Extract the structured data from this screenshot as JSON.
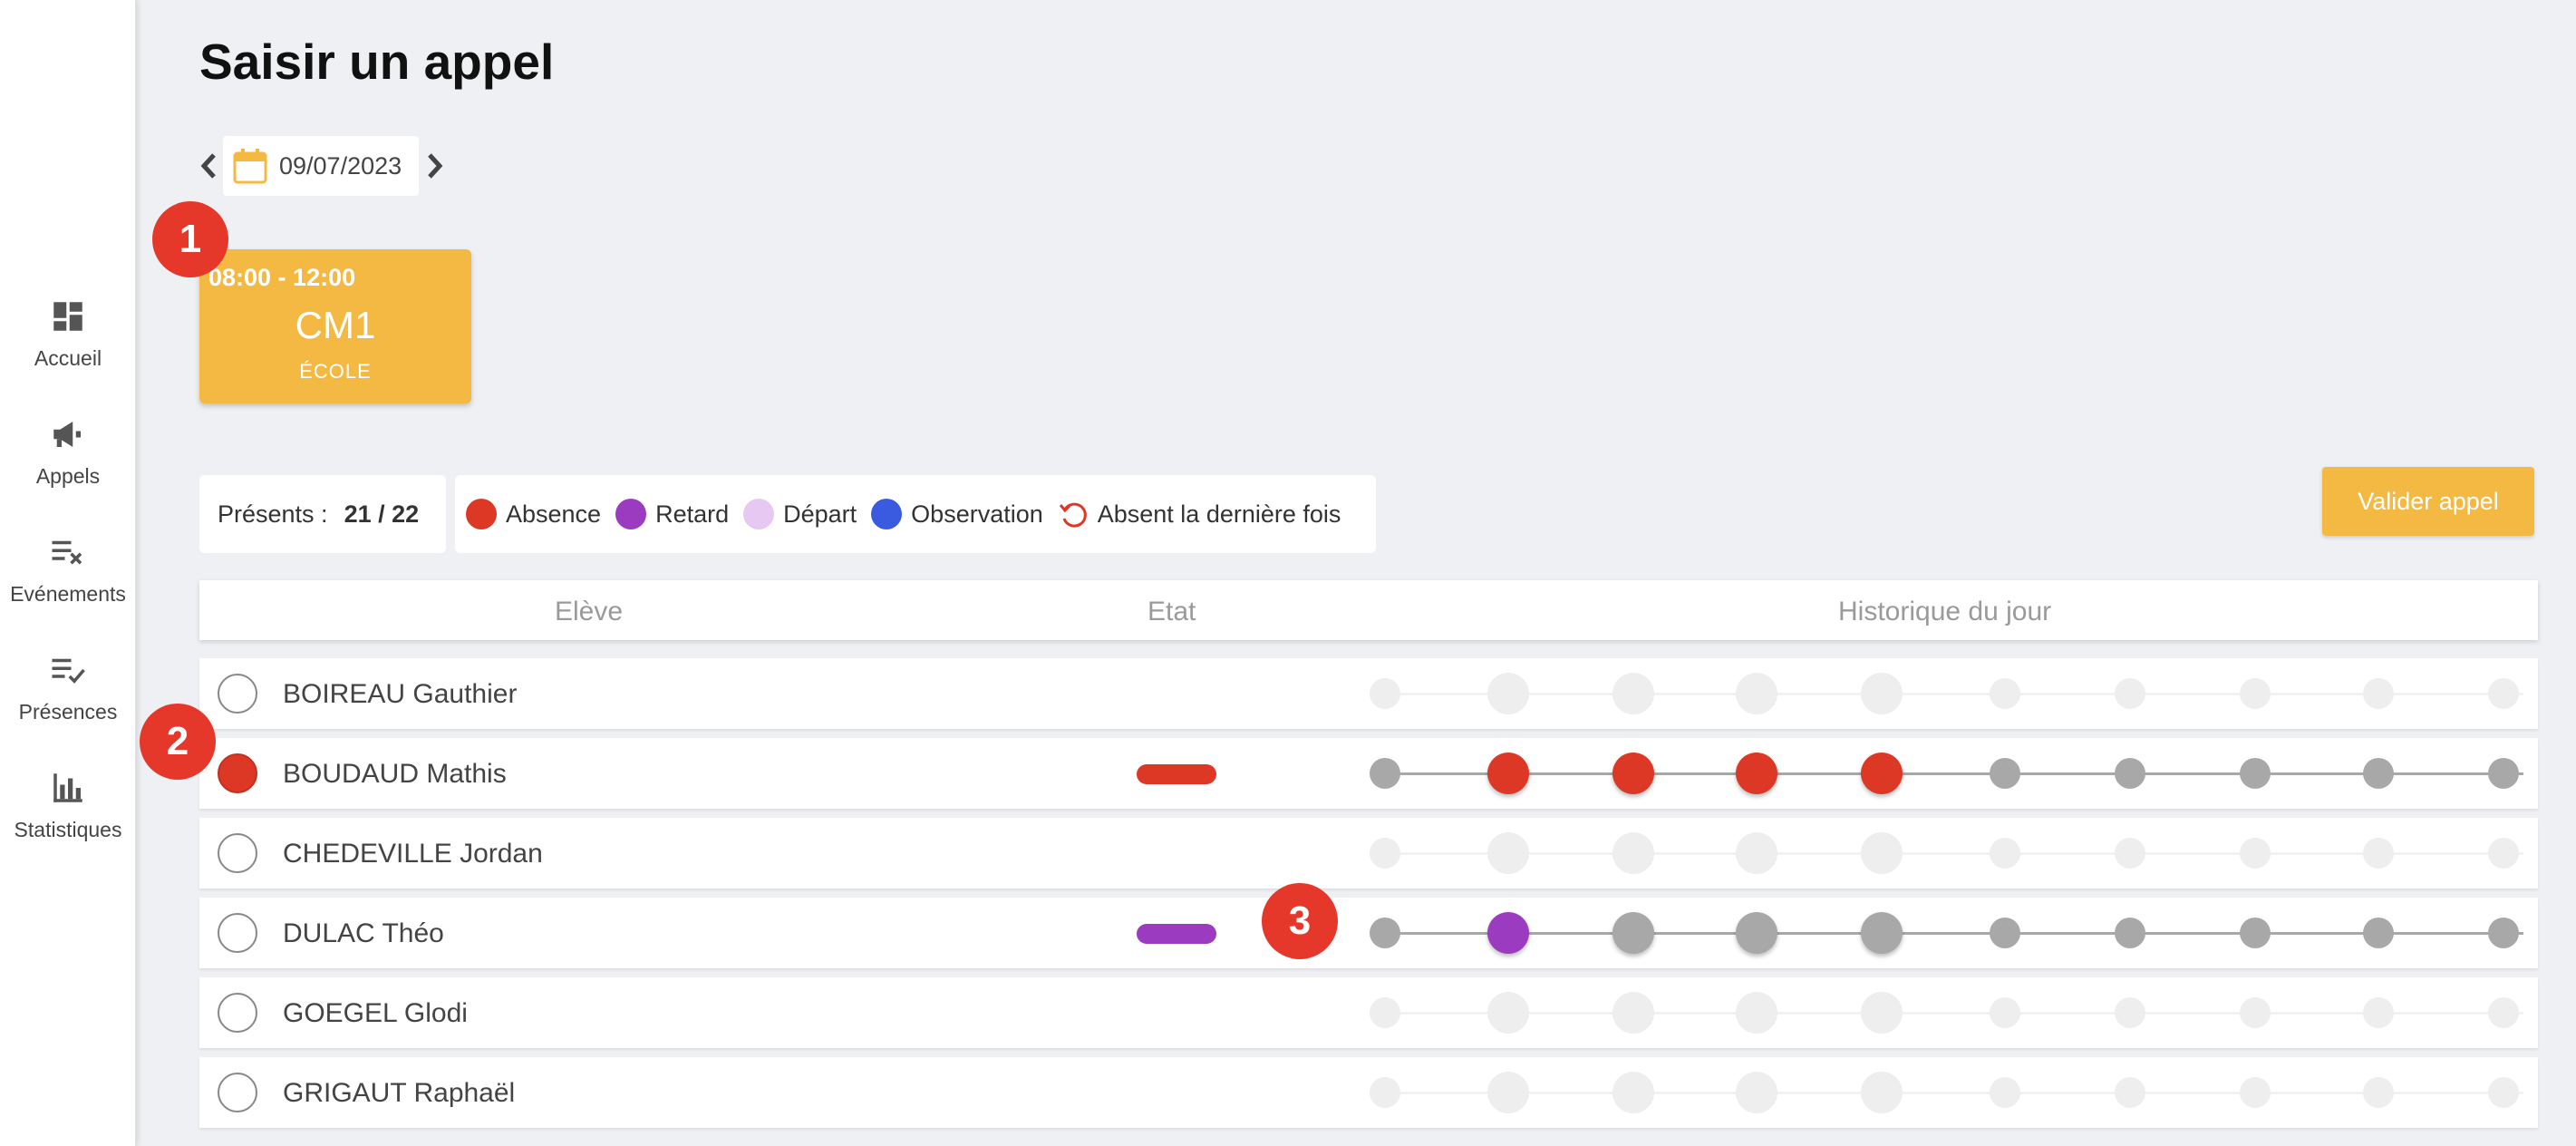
{
  "sidebar": {
    "items": [
      {
        "label": "Accueil",
        "icon": "dashboard-icon"
      },
      {
        "label": "Appels",
        "icon": "megaphone-icon"
      },
      {
        "label": "Evénements",
        "icon": "list-remove-icon"
      },
      {
        "label": "Présences",
        "icon": "list-check-icon"
      },
      {
        "label": "Statistiques",
        "icon": "bar-chart-icon"
      }
    ]
  },
  "page": {
    "title": "Saisir un appel"
  },
  "date_picker": {
    "value": "09/07/2023",
    "icon": "calendar-icon"
  },
  "badges": [
    "1",
    "2",
    "3"
  ],
  "slot": {
    "time": "08:00 - 12:00",
    "class_name": "CM1",
    "place": "ÉCOLE"
  },
  "presence": {
    "label": "Présents :",
    "count": "21 / 22"
  },
  "legend": [
    {
      "label": "Absence",
      "color": "#dd3826"
    },
    {
      "label": "Retard",
      "color": "#9b3cc0"
    },
    {
      "label": "Départ",
      "color": "#e6c8f2"
    },
    {
      "label": "Observation",
      "color": "#3a5be0"
    },
    {
      "label": "Absent la dernière fois",
      "color": "#dd3826",
      "icon": "history-icon"
    }
  ],
  "validate_button": "Valider appel",
  "table": {
    "headers": [
      "Elève",
      "Etat",
      "Historique du jour"
    ],
    "rows": [
      {
        "name": "BOIREAU Gauthier",
        "status": "none",
        "state_color": "",
        "history": [
          "none",
          "none",
          "none",
          "none",
          "none",
          "none",
          "none",
          "none",
          "none",
          "none"
        ]
      },
      {
        "name": "BOUDAUD Mathis",
        "status": "absent",
        "state_color": "#dd3826",
        "history": [
          "gray",
          "absence",
          "absence",
          "absence",
          "absence",
          "gray",
          "gray",
          "gray",
          "gray",
          "gray"
        ]
      },
      {
        "name": "CHEDEVILLE Jordan",
        "status": "none",
        "state_color": "",
        "history": [
          "none",
          "none",
          "none",
          "none",
          "none",
          "none",
          "none",
          "none",
          "none",
          "none"
        ]
      },
      {
        "name": "DULAC Théo",
        "status": "none",
        "state_color": "#9b3cc0",
        "history": [
          "gray",
          "retard",
          "gray",
          "gray",
          "gray",
          "gray",
          "gray",
          "gray",
          "gray",
          "gray"
        ]
      },
      {
        "name": "GOEGEL Glodi",
        "status": "none",
        "state_color": "",
        "history": [
          "none",
          "none",
          "none",
          "none",
          "none",
          "none",
          "none",
          "none",
          "none",
          "none"
        ]
      },
      {
        "name": "GRIGAUT Raphaël",
        "status": "none",
        "state_color": "",
        "history": [
          "none",
          "none",
          "none",
          "none",
          "none",
          "none",
          "none",
          "none",
          "none",
          "none"
        ]
      }
    ]
  },
  "colors": {
    "accent": "#f4b942",
    "absence": "#dd3826",
    "retard": "#9b3cc0",
    "gray": "#a8a8a8",
    "faint": "#eeeeee"
  }
}
